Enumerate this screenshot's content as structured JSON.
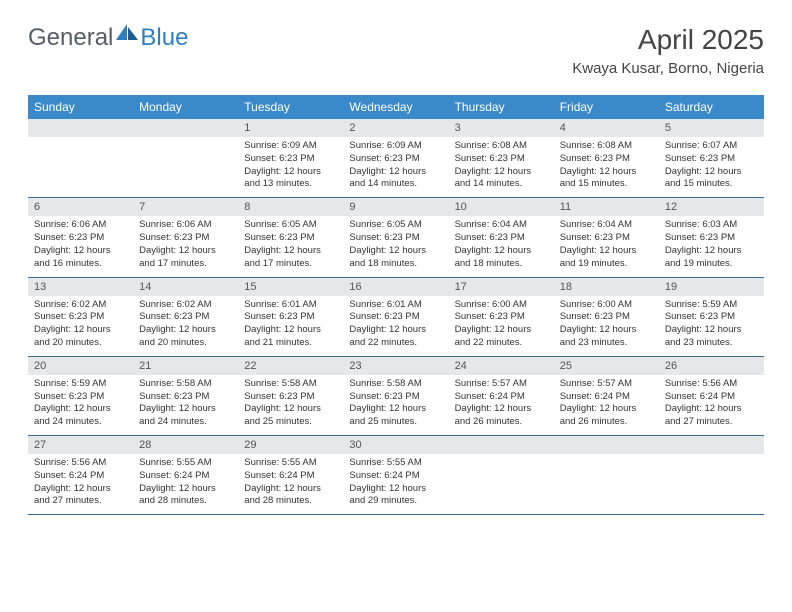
{
  "header": {
    "logo_text1": "General",
    "logo_text2": "Blue",
    "month_title": "April 2025",
    "location": "Kwaya Kusar, Borno, Nigeria"
  },
  "colors": {
    "header_bg": "#3a89c9",
    "header_text": "#ffffff",
    "daynum_bg": "#e6e7e8",
    "row_border": "#3a6c96",
    "logo_gray": "#555d66",
    "logo_blue": "#2f7ec0",
    "page_bg": "#ffffff"
  },
  "typography": {
    "title_fontsize": 28,
    "location_fontsize": 15,
    "dayhead_fontsize": 12,
    "daynum_fontsize": 11,
    "cell_fontsize": 9.5
  },
  "calendar": {
    "type": "table",
    "columns": [
      "Sunday",
      "Monday",
      "Tuesday",
      "Wednesday",
      "Thursday",
      "Friday",
      "Saturday"
    ],
    "weeks": [
      [
        null,
        null,
        {
          "day": "1",
          "sunrise": "6:09 AM",
          "sunset": "6:23 PM",
          "daylight": "12 hours and 13 minutes."
        },
        {
          "day": "2",
          "sunrise": "6:09 AM",
          "sunset": "6:23 PM",
          "daylight": "12 hours and 14 minutes."
        },
        {
          "day": "3",
          "sunrise": "6:08 AM",
          "sunset": "6:23 PM",
          "daylight": "12 hours and 14 minutes."
        },
        {
          "day": "4",
          "sunrise": "6:08 AM",
          "sunset": "6:23 PM",
          "daylight": "12 hours and 15 minutes."
        },
        {
          "day": "5",
          "sunrise": "6:07 AM",
          "sunset": "6:23 PM",
          "daylight": "12 hours and 15 minutes."
        }
      ],
      [
        {
          "day": "6",
          "sunrise": "6:06 AM",
          "sunset": "6:23 PM",
          "daylight": "12 hours and 16 minutes."
        },
        {
          "day": "7",
          "sunrise": "6:06 AM",
          "sunset": "6:23 PM",
          "daylight": "12 hours and 17 minutes."
        },
        {
          "day": "8",
          "sunrise": "6:05 AM",
          "sunset": "6:23 PM",
          "daylight": "12 hours and 17 minutes."
        },
        {
          "day": "9",
          "sunrise": "6:05 AM",
          "sunset": "6:23 PM",
          "daylight": "12 hours and 18 minutes."
        },
        {
          "day": "10",
          "sunrise": "6:04 AM",
          "sunset": "6:23 PM",
          "daylight": "12 hours and 18 minutes."
        },
        {
          "day": "11",
          "sunrise": "6:04 AM",
          "sunset": "6:23 PM",
          "daylight": "12 hours and 19 minutes."
        },
        {
          "day": "12",
          "sunrise": "6:03 AM",
          "sunset": "6:23 PM",
          "daylight": "12 hours and 19 minutes."
        }
      ],
      [
        {
          "day": "13",
          "sunrise": "6:02 AM",
          "sunset": "6:23 PM",
          "daylight": "12 hours and 20 minutes."
        },
        {
          "day": "14",
          "sunrise": "6:02 AM",
          "sunset": "6:23 PM",
          "daylight": "12 hours and 20 minutes."
        },
        {
          "day": "15",
          "sunrise": "6:01 AM",
          "sunset": "6:23 PM",
          "daylight": "12 hours and 21 minutes."
        },
        {
          "day": "16",
          "sunrise": "6:01 AM",
          "sunset": "6:23 PM",
          "daylight": "12 hours and 22 minutes."
        },
        {
          "day": "17",
          "sunrise": "6:00 AM",
          "sunset": "6:23 PM",
          "daylight": "12 hours and 22 minutes."
        },
        {
          "day": "18",
          "sunrise": "6:00 AM",
          "sunset": "6:23 PM",
          "daylight": "12 hours and 23 minutes."
        },
        {
          "day": "19",
          "sunrise": "5:59 AM",
          "sunset": "6:23 PM",
          "daylight": "12 hours and 23 minutes."
        }
      ],
      [
        {
          "day": "20",
          "sunrise": "5:59 AM",
          "sunset": "6:23 PM",
          "daylight": "12 hours and 24 minutes."
        },
        {
          "day": "21",
          "sunrise": "5:58 AM",
          "sunset": "6:23 PM",
          "daylight": "12 hours and 24 minutes."
        },
        {
          "day": "22",
          "sunrise": "5:58 AM",
          "sunset": "6:23 PM",
          "daylight": "12 hours and 25 minutes."
        },
        {
          "day": "23",
          "sunrise": "5:58 AM",
          "sunset": "6:23 PM",
          "daylight": "12 hours and 25 minutes."
        },
        {
          "day": "24",
          "sunrise": "5:57 AM",
          "sunset": "6:24 PM",
          "daylight": "12 hours and 26 minutes."
        },
        {
          "day": "25",
          "sunrise": "5:57 AM",
          "sunset": "6:24 PM",
          "daylight": "12 hours and 26 minutes."
        },
        {
          "day": "26",
          "sunrise": "5:56 AM",
          "sunset": "6:24 PM",
          "daylight": "12 hours and 27 minutes."
        }
      ],
      [
        {
          "day": "27",
          "sunrise": "5:56 AM",
          "sunset": "6:24 PM",
          "daylight": "12 hours and 27 minutes."
        },
        {
          "day": "28",
          "sunrise": "5:55 AM",
          "sunset": "6:24 PM",
          "daylight": "12 hours and 28 minutes."
        },
        {
          "day": "29",
          "sunrise": "5:55 AM",
          "sunset": "6:24 PM",
          "daylight": "12 hours and 28 minutes."
        },
        {
          "day": "30",
          "sunrise": "5:55 AM",
          "sunset": "6:24 PM",
          "daylight": "12 hours and 29 minutes."
        },
        null,
        null,
        null
      ]
    ],
    "labels": {
      "sunrise": "Sunrise:",
      "sunset": "Sunset:",
      "daylight": "Daylight:"
    }
  }
}
